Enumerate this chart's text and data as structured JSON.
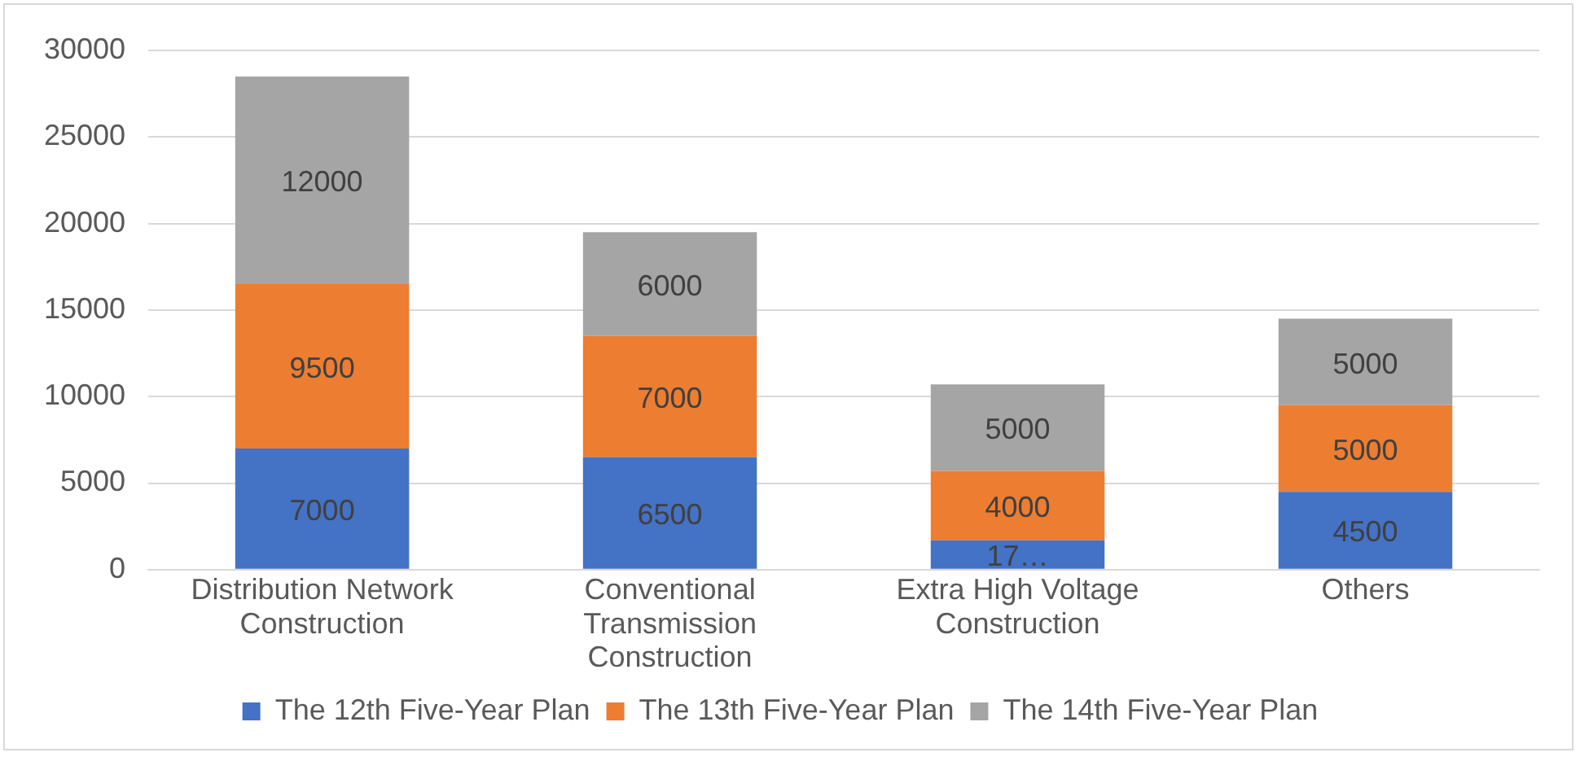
{
  "chart_data": {
    "type": "bar",
    "stacked": true,
    "categories": [
      "Distribution Network Construction",
      "Conventional Transmission Construction",
      "Extra High Voltage Construction",
      "Others"
    ],
    "series": [
      {
        "name": "The 12th Five-Year Plan",
        "color": "#4472c4",
        "values": [
          7000,
          6500,
          1700,
          4500
        ],
        "value_labels": [
          "7000",
          "6500",
          "17…",
          "4500"
        ]
      },
      {
        "name": "The 13th Five-Year Plan",
        "color": "#ed7d31",
        "values": [
          9500,
          7000,
          4000,
          5000
        ],
        "value_labels": [
          "9500",
          "7000",
          "4000",
          "5000"
        ]
      },
      {
        "name": "The 14th Five-Year Plan",
        "color": "#a5a5a5",
        "values": [
          12000,
          6000,
          5000,
          5000
        ],
        "value_labels": [
          "12000",
          "6000",
          "5000",
          "5000"
        ]
      }
    ],
    "ylim": [
      0,
      30000
    ],
    "yticks": [
      0,
      5000,
      10000,
      15000,
      20000,
      25000,
      30000
    ],
    "grid": "y",
    "legend": "bottom"
  }
}
